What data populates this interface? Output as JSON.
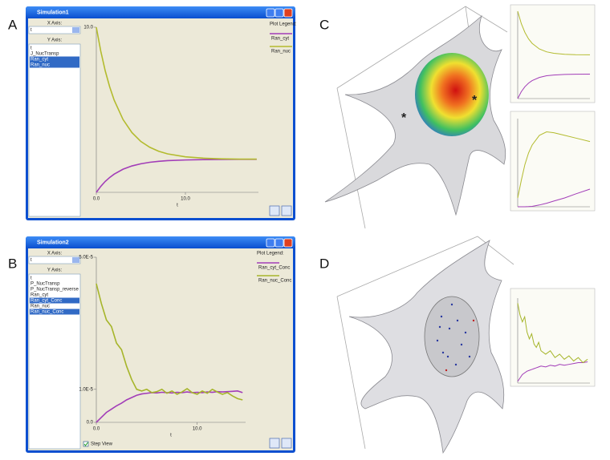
{
  "panel_labels": [
    "A",
    "B",
    "C",
    "D"
  ],
  "panel_c": {
    "annotations": [
      "*",
      "*"
    ]
  },
  "windows": [
    {
      "title": "Simulation1",
      "x_axis_label": "X Axis:",
      "x_value": "t",
      "y_axis_label": "Y Axis:",
      "y_items": [
        "t",
        "J_NucTransp",
        "Ran_cyt",
        "Ran_nuc"
      ],
      "selected": [
        false,
        false,
        true,
        true
      ]
    },
    {
      "title": "Simulation2",
      "x_axis_label": "X Axis:",
      "x_value": "t",
      "y_axis_label": "Y Axis:",
      "y_items": [
        "t",
        "P_NucTransp",
        "P_NucTransp_reverse",
        "Ran_cyt",
        "Ran_cyt_Conc",
        "Ran_nuc",
        "Ran_nuc_Conc"
      ],
      "selected": [
        false,
        false,
        false,
        false,
        true,
        false,
        true
      ],
      "checkbox": "Step View",
      "checked": true
    }
  ],
  "chart_data": [
    {
      "type": "line",
      "xlabel": "t",
      "legend_title": "Plot Legend:",
      "x": [
        0,
        0.5,
        1,
        1.5,
        2,
        3,
        4,
        5,
        6,
        7,
        8,
        10,
        12,
        14,
        16,
        18
      ],
      "series": [
        {
          "name": "Ran_cyt",
          "color": "#a23db8",
          "values": [
            0,
            0.36,
            0.66,
            0.9,
            1.1,
            1.4,
            1.6,
            1.73,
            1.82,
            1.88,
            1.92,
            1.96,
            1.98,
            1.99,
            2.0,
            2.0
          ]
        },
        {
          "name": "Ran_nuc",
          "color": "#b3bb2e",
          "values": [
            10,
            8.55,
            7.36,
            6.39,
            5.59,
            4.41,
            3.62,
            3.08,
            2.73,
            2.49,
            2.33,
            2.15,
            2.07,
            2.03,
            2.01,
            2.01
          ]
        }
      ],
      "xlim": [
        0,
        18.2
      ],
      "ylim": [
        0,
        10
      ],
      "xticks": [
        {
          "value": 0,
          "label": "0.0"
        },
        {
          "value": 10,
          "label": "10.0"
        }
      ],
      "yticks": [
        {
          "value": 10,
          "label": "10.0"
        }
      ]
    },
    {
      "type": "line",
      "xlabel": "t",
      "legend_title": "Plot Legend:",
      "x": [
        0,
        0.5,
        1,
        1.5,
        2,
        2.5,
        3,
        3.5,
        4,
        4.5,
        5,
        5.5,
        6,
        6.5,
        7,
        7.5,
        8,
        8.5,
        9,
        9.5,
        10,
        10.5,
        11,
        11.5,
        12,
        12.5,
        13,
        13.5,
        14,
        14.5
      ],
      "series": [
        {
          "name": "Ran_cyt_Conc",
          "color": "#a23db8",
          "values": [
            0,
            1.5e-06,
            3e-06,
            4e-06,
            5e-06,
            5.8e-06,
            6.8e-06,
            7.5e-06,
            8.2e-06,
            8.6e-06,
            8.8e-06,
            9e-06,
            8.9e-06,
            9.1e-06,
            9e-06,
            8.9e-06,
            9.1e-06,
            9e-06,
            9.2e-06,
            9e-06,
            9.1e-06,
            9e-06,
            9.2e-06,
            9.1e-06,
            9.3e-06,
            9.2e-06,
            9.3e-06,
            9.4e-06,
            9.5e-06,
            9e-06
          ]
        },
        {
          "name": "Ran_nuc_Conc",
          "color": "#a6b52a",
          "values": [
            4.2e-05,
            3.6e-05,
            3.1e-05,
            2.9e-05,
            2.4e-05,
            2.2e-05,
            1.7e-05,
            1.3e-05,
            1e-05,
            9.5e-06,
            1e-05,
            9e-06,
            9.3e-06,
            1e-05,
            8.8e-06,
            9.5e-06,
            8.5e-06,
            9.2e-06,
            1.02e-05,
            9e-06,
            8.5e-06,
            9.5e-06,
            8.8e-06,
            1e-05,
            9.2e-06,
            8.5e-06,
            9e-06,
            8e-06,
            7.2e-06,
            6.8e-06
          ]
        }
      ],
      "xlim": [
        0,
        14.8
      ],
      "ylim": [
        0,
        5e-05
      ],
      "xticks": [
        {
          "value": 0,
          "label": "0.0"
        },
        {
          "value": 10,
          "label": "10.0"
        }
      ],
      "yticks": [
        {
          "value": 0,
          "label": "0.0"
        },
        {
          "value": 1e-05,
          "label": "1.0E-5"
        },
        {
          "value": 5e-05,
          "label": "5.0E-5"
        }
      ]
    },
    {
      "type": "line",
      "x": [
        0,
        1,
        2,
        3,
        4,
        6,
        8,
        10,
        13,
        16,
        20
      ],
      "series": [
        {
          "color": "#a23db8",
          "values": [
            0,
            0.79,
            1.36,
            1.77,
            2.06,
            2.42,
            2.61,
            2.7,
            2.76,
            2.79,
            2.8
          ]
        },
        {
          "color": "#b3bb2e",
          "values": [
            10,
            8.58,
            7.57,
            6.84,
            6.32,
            5.68,
            5.35,
            5.18,
            5.07,
            5.02,
            5.01
          ]
        }
      ],
      "xlim": [
        0,
        20
      ],
      "ylim": [
        0,
        10
      ]
    },
    {
      "type": "line",
      "x": [
        0,
        1,
        2,
        3,
        4,
        6,
        8,
        10,
        13,
        16,
        20
      ],
      "series": [
        {
          "color": "#a23db8",
          "values": [
            0,
            0,
            0,
            0.02,
            0.05,
            0.2,
            0.4,
            0.65,
            1.0,
            1.45,
            2.0
          ]
        },
        {
          "color": "#b3bb2e",
          "values": [
            1,
            3,
            4.8,
            6.1,
            7.0,
            8.1,
            8.5,
            8.4,
            8.1,
            7.8,
            7.4
          ]
        }
      ],
      "xlim": [
        0,
        20
      ],
      "ylim": [
        0,
        10
      ]
    },
    {
      "type": "line",
      "x": [
        0,
        0.5,
        1,
        1.5,
        2,
        2.5,
        3,
        3.5,
        4,
        4.5,
        5,
        6,
        7,
        8,
        9,
        10,
        11,
        12,
        13,
        14,
        15
      ],
      "series": [
        {
          "color": "#a23db8",
          "values": [
            0.1,
            0.3,
            0.5,
            0.6,
            0.7,
            0.75,
            0.8,
            0.85,
            0.9,
            0.95,
            1.0,
            0.95,
            1.05,
            1.0,
            1.1,
            1.05,
            1.1,
            1.15,
            1.2,
            1.2,
            1.25
          ]
        },
        {
          "color": "#a6b52a",
          "values": [
            4.7,
            4.0,
            3.6,
            3.9,
            3.0,
            2.6,
            2.9,
            2.3,
            2.1,
            2.4,
            1.9,
            1.7,
            1.9,
            1.5,
            1.7,
            1.4,
            1.6,
            1.3,
            1.5,
            1.2,
            1.4
          ]
        }
      ],
      "xlim": [
        0,
        15.5
      ],
      "ylim": [
        0,
        5
      ]
    }
  ]
}
